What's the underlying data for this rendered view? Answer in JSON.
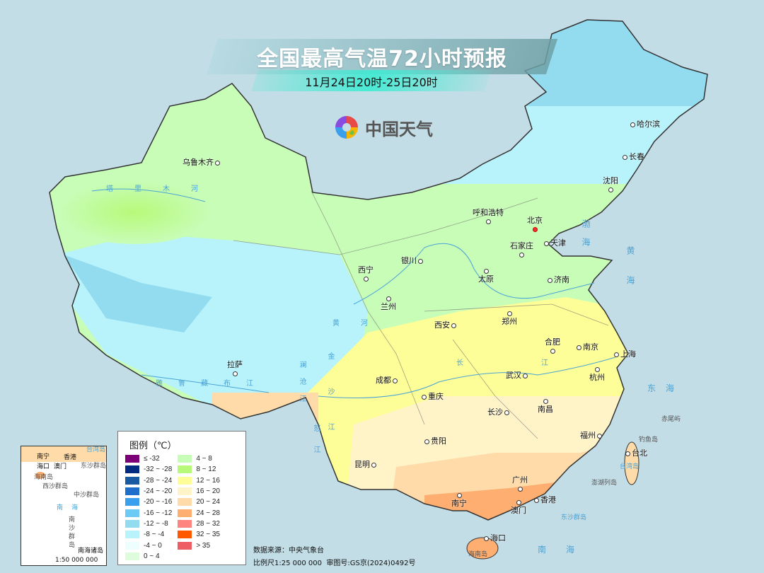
{
  "title": "全国最高气温72小时预报",
  "subtitle": "11月24日20时-25日20时",
  "logo": {
    "text": "中国天气",
    "icon": "china-weather-swirl-logo"
  },
  "cities": [
    {
      "name": "乌鲁木齐"
    },
    {
      "name": "哈尔滨"
    },
    {
      "name": "长春"
    },
    {
      "name": "沈阳"
    },
    {
      "name": "呼和浩特"
    },
    {
      "name": "北京",
      "capital": true
    },
    {
      "name": "天津"
    },
    {
      "name": "石家庄"
    },
    {
      "name": "银川"
    },
    {
      "name": "太原"
    },
    {
      "name": "济南"
    },
    {
      "name": "西宁"
    },
    {
      "name": "兰州"
    },
    {
      "name": "郑州"
    },
    {
      "name": "西安"
    },
    {
      "name": "合肥"
    },
    {
      "name": "南京"
    },
    {
      "name": "上海"
    },
    {
      "name": "成都"
    },
    {
      "name": "武汉"
    },
    {
      "name": "杭州"
    },
    {
      "name": "拉萨"
    },
    {
      "name": "重庆"
    },
    {
      "name": "长沙"
    },
    {
      "name": "南昌"
    },
    {
      "name": "福州"
    },
    {
      "name": "贵阳"
    },
    {
      "name": "台北"
    },
    {
      "name": "昆明"
    },
    {
      "name": "南宁"
    },
    {
      "name": "广州"
    },
    {
      "name": "香港"
    },
    {
      "name": "澳门"
    },
    {
      "name": "海口"
    }
  ],
  "seas": [
    "渤海",
    "黄海",
    "东海",
    "南海"
  ],
  "islands": [
    "钓鱼岛",
    "赤尾屿",
    "台湾岛",
    "澎湖列岛",
    "东沙群岛",
    "海南岛"
  ],
  "rivers": [
    "塔里木河",
    "雅鲁藏布江",
    "黄河",
    "长江",
    "澜沧江",
    "金沙江",
    "怒江"
  ],
  "legend": {
    "title": "图例（℃）",
    "items": [
      {
        "label": "≤ -32",
        "color": "#7b0078"
      },
      {
        "label": "-32 ~ -28",
        "color": "#002c80"
      },
      {
        "label": "-28 ~ -24",
        "color": "#1a5aa0"
      },
      {
        "label": "-24 ~ -20",
        "color": "#1e6fcc"
      },
      {
        "label": "-20 ~ -16",
        "color": "#3aa0ee"
      },
      {
        "label": "-16 ~ -12",
        "color": "#6ccaf5"
      },
      {
        "label": "-12 ~ -8",
        "color": "#93dcf0"
      },
      {
        "label": "-8 ~ -4",
        "color": "#b8f3fb"
      },
      {
        "label": "-4 ~ 0",
        "color": "#eefefe"
      },
      {
        "label": "0 ~ 4",
        "color": "#defbdc"
      },
      {
        "label": "4 ~ 8",
        "color": "#c8fdb8"
      },
      {
        "label": "8 ~ 12",
        "color": "#b8f97a"
      },
      {
        "label": "12 ~ 16",
        "color": "#fefe98"
      },
      {
        "label": "16 ~ 20",
        "color": "#fff3c8"
      },
      {
        "label": "20 ~ 24",
        "color": "#fedba8"
      },
      {
        "label": "24 ~ 28",
        "color": "#feae70"
      },
      {
        "label": "28 ~ 32",
        "color": "#fe8480"
      },
      {
        "label": "32 ~ 35",
        "color": "#fe5800"
      },
      {
        "label": "> 35",
        "color": "#ee5c64"
      }
    ]
  },
  "inset": {
    "title": "南海诸岛",
    "scale": "1:50 000 000",
    "labels": [
      "南宁",
      "海口",
      "澳门",
      "香港",
      "台湾岛",
      "东沙群岛",
      "海南岛",
      "西沙群岛",
      "中沙群岛",
      "南海",
      "南沙群岛"
    ]
  },
  "footer": {
    "source": "数据来源：中央气象台",
    "scale": "比例尺1:25 000 000",
    "review_no": "审图号:GS京(2024)0492号"
  }
}
